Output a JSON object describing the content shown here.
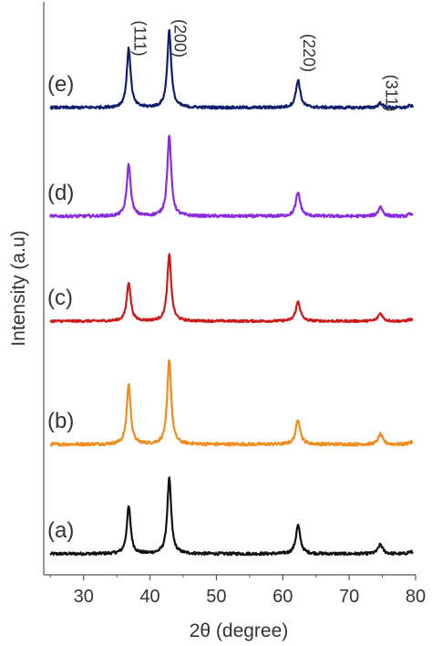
{
  "chart_data": {
    "type": "line",
    "title": "",
    "xlabel": "2θ (degree)",
    "ylabel": "Intensity (a.u)",
    "xlim": [
      24,
      80
    ],
    "x_ticks": [
      30,
      40,
      50,
      60,
      70,
      80
    ],
    "x_tick_labels": [
      "30",
      "40",
      "50",
      "60",
      "70",
      "80"
    ],
    "y_ticks_shown": false,
    "grid": false,
    "legend": "none (curves labelled at left)",
    "peaks": [
      {
        "label": "(111)",
        "two_theta": 36.8
      },
      {
        "label": "(200)",
        "two_theta": 42.9
      },
      {
        "label": "(220)",
        "two_theta": 62.3
      },
      {
        "label": "(311)",
        "two_theta": 74.7
      }
    ],
    "series": [
      {
        "name": "(a)",
        "color": "#111111",
        "peak_intensities": [
          1.0,
          1.6,
          0.6,
          0.2
        ]
      },
      {
        "name": "(b)",
        "color": "#f08c1e",
        "peak_intensities": [
          1.2,
          1.7,
          0.5,
          0.2
        ]
      },
      {
        "name": "(c)",
        "color": "#cc1a1a",
        "peak_intensities": [
          1.0,
          1.7,
          0.5,
          0.2
        ]
      },
      {
        "name": "(d)",
        "color": "#8a2be2",
        "peak_intensities": [
          1.1,
          1.7,
          0.5,
          0.2
        ]
      },
      {
        "name": "(e)",
        "color": "#0f1f6e",
        "peak_intensities": [
          1.3,
          1.7,
          0.6,
          0.1
        ]
      }
    ]
  }
}
